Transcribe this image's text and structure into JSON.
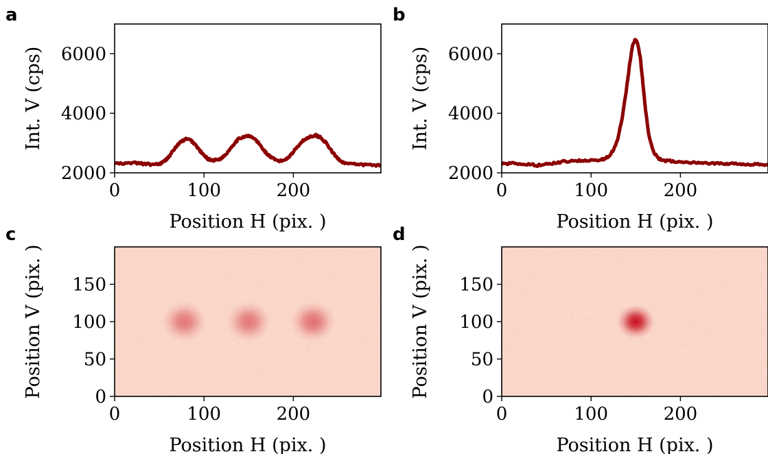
{
  "figure": {
    "colors": {
      "line": "#8b0000",
      "heat_low": "#fcdcd0",
      "heat_high": "#c81020"
    }
  },
  "chart_data": [
    {
      "panel": "a",
      "type": "line",
      "xlabel": "Position H (pix. )",
      "ylabel": "Int.  V (cps)",
      "xlim": [
        0,
        298
      ],
      "ylim": [
        2000,
        7000
      ],
      "xticks": [
        "0",
        "100",
        "200"
      ],
      "yticks": [
        "2000",
        "4000",
        "6000"
      ],
      "series": [
        {
          "x": [
            0,
            10,
            20,
            30,
            40,
            50,
            55,
            60,
            65,
            70,
            75,
            80,
            85,
            90,
            95,
            100,
            105,
            110,
            115,
            120,
            125,
            130,
            135,
            140,
            145,
            150,
            155,
            160,
            165,
            170,
            175,
            180,
            185,
            190,
            195,
            200,
            205,
            210,
            215,
            220,
            225,
            230,
            235,
            240,
            245,
            250,
            255,
            260,
            270,
            280,
            290,
            298
          ],
          "y": [
            2320,
            2300,
            2340,
            2310,
            2280,
            2300,
            2370,
            2520,
            2720,
            2920,
            3060,
            3130,
            3100,
            2960,
            2760,
            2580,
            2460,
            2420,
            2440,
            2500,
            2640,
            2840,
            3030,
            3160,
            3220,
            3230,
            3180,
            3040,
            2840,
            2650,
            2520,
            2430,
            2390,
            2430,
            2540,
            2700,
            2900,
            3060,
            3160,
            3230,
            3260,
            3200,
            3060,
            2860,
            2640,
            2470,
            2370,
            2310,
            2280,
            2270,
            2260,
            2250
          ]
        }
      ]
    },
    {
      "panel": "b",
      "type": "line",
      "xlabel": "Position H (pix. )",
      "ylabel": "Int.  V (cps)",
      "xlim": [
        0,
        298
      ],
      "ylim": [
        2000,
        7000
      ],
      "xticks": [
        "0",
        "100",
        "200"
      ],
      "yticks": [
        "2000",
        "4000",
        "6000"
      ],
      "series": [
        {
          "x": [
            0,
            10,
            20,
            30,
            40,
            50,
            60,
            70,
            80,
            90,
            100,
            110,
            115,
            120,
            125,
            130,
            135,
            140,
            143,
            146,
            149,
            152,
            155,
            158,
            161,
            165,
            170,
            175,
            180,
            190,
            200,
            210,
            220,
            230,
            240,
            250,
            260,
            270,
            280,
            290,
            298
          ],
          "y": [
            2300,
            2310,
            2320,
            2290,
            2250,
            2290,
            2330,
            2380,
            2400,
            2410,
            2420,
            2440,
            2470,
            2560,
            2760,
            3150,
            3850,
            4900,
            5600,
            6200,
            6480,
            6380,
            5900,
            5000,
            4100,
            3200,
            2700,
            2500,
            2420,
            2390,
            2380,
            2360,
            2350,
            2330,
            2320,
            2310,
            2300,
            2290,
            2280,
            2280,
            2260
          ]
        }
      ]
    },
    {
      "panel": "c",
      "type": "heatmap",
      "xlabel": "Position H (pix. )",
      "ylabel": "Position V (pix. )",
      "xlim": [
        0,
        298
      ],
      "ylim": [
        0,
        200
      ],
      "xticks": [
        "0",
        "100",
        "200"
      ],
      "yticks": [
        "0",
        "50",
        "100",
        "150"
      ],
      "spots": [
        {
          "x": 78,
          "y": 100,
          "intensity": 0.22
        },
        {
          "x": 150,
          "y": 100,
          "intensity": 0.22
        },
        {
          "x": 222,
          "y": 100,
          "intensity": 0.24
        }
      ]
    },
    {
      "panel": "d",
      "type": "heatmap",
      "xlabel": "Position H (pix. )",
      "ylabel": "Position V (pix. )",
      "xlim": [
        0,
        298
      ],
      "ylim": [
        0,
        200
      ],
      "xticks": [
        "0",
        "100",
        "200"
      ],
      "yticks": [
        "0",
        "50",
        "100",
        "150"
      ],
      "spots": [
        {
          "x": 150,
          "y": 100,
          "intensity": 1.0
        }
      ]
    }
  ]
}
